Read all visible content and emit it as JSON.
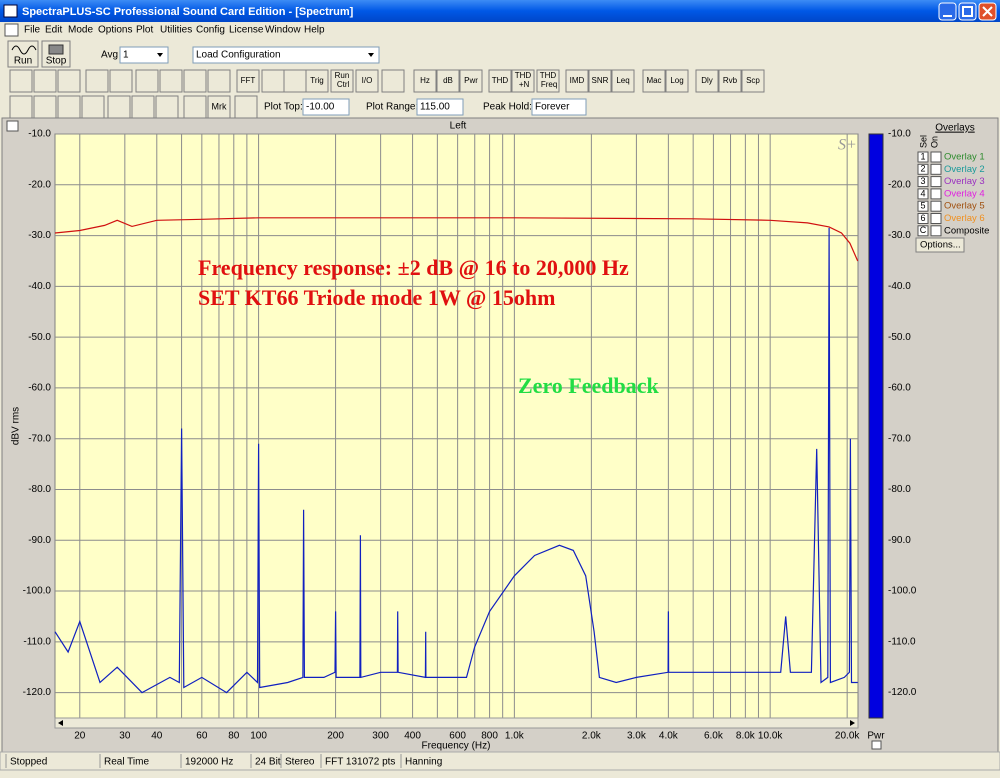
{
  "window": {
    "title": "SpectraPLUS-SC Professional Sound Card Edition - [Spectrum]"
  },
  "menu": [
    "File",
    "Edit",
    "Mode",
    "Options",
    "Plot",
    "Utilities",
    "Config",
    "License",
    "Window",
    "Help"
  ],
  "toolbar": {
    "run": "Run",
    "stop": "Stop",
    "avg_label": "Avg",
    "avg_value": "1",
    "config": "Load Configuration",
    "buttons": [
      "FFT",
      "Trig",
      "Run Ctrl",
      "I/O",
      "Hz",
      "dB",
      "Pwr",
      "THD",
      "THD +N",
      "THD Freq",
      "IMD",
      "SNR",
      "Leq",
      "Mac",
      "Log",
      "Dly",
      "Rvb",
      "Scp"
    ],
    "marker": "Mrk",
    "plot_top_label": "Plot Top:",
    "plot_top": "-10.00",
    "plot_range_label": "Plot Range:",
    "plot_range": "115.00",
    "peak_hold_label": "Peak Hold:",
    "peak_hold": "Forever"
  },
  "chart_data": {
    "type": "line",
    "title": "Left",
    "x_label": "Frequency (Hz)",
    "y_label": "dBV rms",
    "log_x": true,
    "grid": true,
    "xlim": [
      16,
      22050
    ],
    "ylim": [
      -125,
      -10
    ],
    "xticks": [
      20,
      30,
      40,
      60,
      80,
      100,
      200,
      300,
      400,
      600,
      800,
      {
        "value": 1000,
        "label": "1.0k"
      },
      {
        "value": 2000,
        "label": "2.0k"
      },
      {
        "value": 3000,
        "label": "3.0k"
      },
      {
        "value": 4000,
        "label": "4.0k"
      },
      {
        "value": 6000,
        "label": "6.0k"
      },
      {
        "value": 8000,
        "label": "8.0k"
      },
      {
        "value": 10000,
        "label": "10.0k"
      },
      {
        "value": 20000,
        "label": "20.0k"
      }
    ],
    "xgrid_minor": [
      50,
      70,
      90,
      500,
      700,
      900,
      5000,
      7000,
      9000
    ],
    "yticks": [
      {
        "value": -10,
        "label": "-10.0"
      },
      {
        "value": -20,
        "label": "-20.0"
      },
      {
        "value": -30,
        "label": "-30.0"
      },
      {
        "value": -40,
        "label": "-40.0"
      },
      {
        "value": -50,
        "label": "-50.0"
      },
      {
        "value": -60,
        "label": "-60.0"
      },
      {
        "value": -70,
        "label": "-70.0"
      },
      {
        "value": -80,
        "label": "-80.0"
      },
      {
        "value": -90,
        "label": "-90.0"
      },
      {
        "value": -100,
        "label": "-100.0"
      },
      {
        "value": -110,
        "label": "-110.0"
      },
      {
        "value": -120,
        "label": "-120.0"
      }
    ],
    "series": [
      {
        "color": "#d01010",
        "x": [
          16,
          20,
          25,
          28,
          32,
          40,
          60,
          100,
          1000,
          5000,
          10000,
          14000,
          17000,
          19000,
          20500,
          22000
        ],
        "values": [
          -29.5,
          -29,
          -28,
          -27,
          -28.2,
          -27,
          -26.8,
          -26.5,
          -26.5,
          -26.7,
          -27,
          -27.5,
          -28.3,
          -29.5,
          -31.5,
          -35
        ]
      },
      {
        "color": "#1020c0",
        "x": [
          16,
          18,
          20,
          24,
          28,
          35,
          45,
          49,
          50,
          51,
          60,
          75,
          90,
          99,
          100,
          101,
          130,
          149,
          150,
          151,
          180,
          199,
          200,
          201,
          249,
          250,
          251,
          300,
          349,
          350,
          351,
          449,
          450,
          451,
          550,
          650,
          700,
          800,
          1000,
          1200,
          1500,
          1700,
          1900,
          2050,
          2150,
          2500,
          3000,
          3990,
          4000,
          4010,
          6000,
          8000,
          11000,
          11500,
          12000,
          14500,
          15200,
          15800,
          16800,
          17000,
          17200,
          19500,
          20400,
          20600,
          20800,
          22000
        ],
        "values": [
          -108,
          -112,
          -106,
          -118,
          -115,
          -120,
          -117,
          -118,
          -68,
          -119,
          -117,
          -120,
          -116,
          -118,
          -71,
          -119,
          -118,
          -117,
          -84,
          -117,
          -117,
          -116,
          -104,
          -117,
          -117,
          -89,
          -117,
          -116,
          -116,
          -104,
          -116,
          -117,
          -108,
          -117,
          -117,
          -117,
          -111,
          -104,
          -97,
          -93,
          -91,
          -92,
          -97,
          -108,
          -117,
          -118,
          -117,
          -116,
          -104,
          -116,
          -116,
          -116,
          -116,
          -105,
          -116,
          -116,
          -72,
          -118,
          -117,
          -28.5,
          -118,
          -117,
          -116,
          -70,
          -118,
          -118
        ]
      }
    ],
    "annotations": [
      {
        "text": "Frequency response: ±2 dB @ 16 to 20,000 Hz",
        "color": "#e01010"
      },
      {
        "text": "SET KT66 Triode mode 1W @ 15ohm",
        "color": "#e01010"
      },
      {
        "text": "Zero Feedback",
        "color": "#22dd44"
      }
    ],
    "watermark": "S+",
    "power_label": "Pwr"
  },
  "overlays": {
    "title": "Overlays",
    "sel": "Sel",
    "on": "On",
    "options": "Options...",
    "rows": [
      {
        "key": "1",
        "label": "Overlay 1",
        "color": "#2e8b2e"
      },
      {
        "key": "2",
        "label": "Overlay 2",
        "color": "#1a9a9a"
      },
      {
        "key": "3",
        "label": "Overlay 3",
        "color": "#9a30c0"
      },
      {
        "key": "4",
        "label": "Overlay 4",
        "color": "#e020e0"
      },
      {
        "key": "5",
        "label": "Overlay 5",
        "color": "#a05010"
      },
      {
        "key": "6",
        "label": "Overlay 6",
        "color": "#f09020"
      },
      {
        "key": "C",
        "label": "Composite",
        "color": "#000000"
      }
    ]
  },
  "status": [
    "Stopped",
    "Real Time",
    "192000 Hz",
    "24 Bit",
    "Stereo",
    "FFT 131072 pts",
    "Hanning"
  ]
}
